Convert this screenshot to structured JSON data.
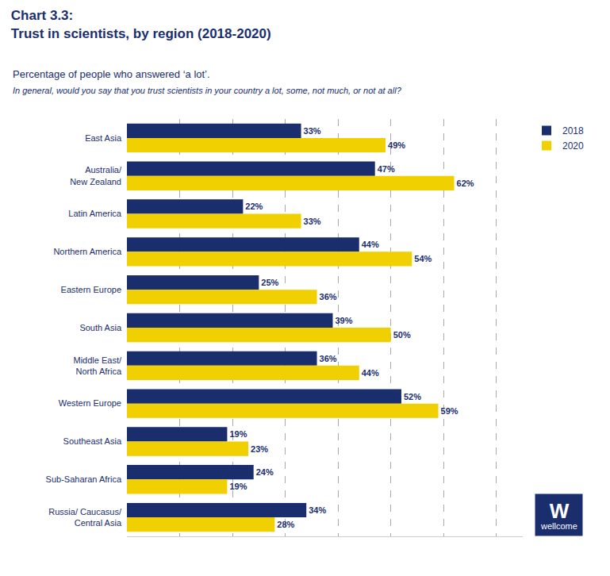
{
  "chart_data": {
    "type": "bar",
    "orientation": "horizontal",
    "title": "Chart 3.3:\nTrust in scientists, by region (2018-2020)",
    "subtitle": "Percentage of people who answered ‘a lot’.",
    "annotations": [
      "In general, would you say that you trust scientists in your country a lot, some, not much, or not at all?",
      "W",
      "wellcome"
    ],
    "categories": [
      "East Asia",
      "Australia/\nNew Zealand",
      "Latin America",
      "Northern America",
      "Eastern Europe",
      "South Asia",
      "Middle East/\nNorth Africa",
      "Western Europe",
      "Southeast Asia",
      "Sub-Saharan Africa",
      "Russia/ Caucasus/\nCentral Asia"
    ],
    "series": [
      {
        "name": "2018",
        "color": "#1a2e6e",
        "values": [
          33,
          47,
          22,
          44,
          25,
          39,
          36,
          52,
          19,
          24,
          34
        ],
        "value_labels": [
          "33%",
          "47%",
          "22%",
          "44%",
          "25%",
          "39%",
          "36%",
          "52%",
          "19%",
          "24%",
          "34%"
        ]
      },
      {
        "name": "2020",
        "color": "#f0d000",
        "values": [
          49,
          62,
          33,
          54,
          36,
          50,
          44,
          59,
          23,
          19,
          28
        ],
        "value_labels": [
          "49%",
          "62%",
          "33%",
          "54%",
          "36%",
          "50%",
          "44%",
          "59%",
          "23%",
          "19%",
          "28%"
        ]
      }
    ],
    "xlim": [
      0,
      75
    ],
    "xticks": [
      10,
      20,
      30,
      40,
      50,
      60,
      70
    ],
    "grid": true,
    "tick_labels": "y",
    "data_labels": true,
    "legend": "top right"
  }
}
